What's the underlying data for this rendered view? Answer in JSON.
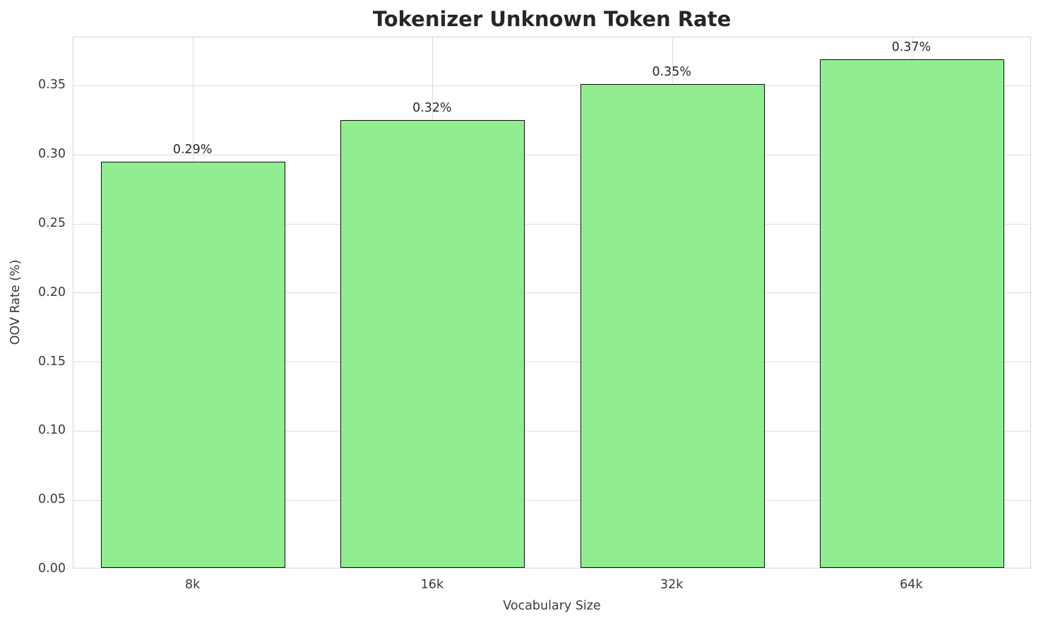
{
  "chart_data": {
    "type": "bar",
    "title": "Tokenizer Unknown Token Rate",
    "xlabel": "Vocabulary Size",
    "ylabel": "OOV Rate (%)",
    "categories": [
      "8k",
      "16k",
      "32k",
      "64k"
    ],
    "values": [
      0.294,
      0.324,
      0.35,
      0.368
    ],
    "bar_labels": [
      "0.29%",
      "0.32%",
      "0.35%",
      "0.37%"
    ],
    "yticks": [
      0.0,
      0.05,
      0.1,
      0.15,
      0.2,
      0.25,
      0.3,
      0.35
    ],
    "ytick_labels": [
      "0.00",
      "0.05",
      "0.10",
      "0.15",
      "0.20",
      "0.25",
      "0.30",
      "0.35"
    ],
    "ylim": [
      0,
      0.385
    ],
    "grid": true,
    "legend": null,
    "bar_color": "#90ee90",
    "bar_edge_color": "#0d0d0d",
    "bar_width_fraction": 0.77
  }
}
